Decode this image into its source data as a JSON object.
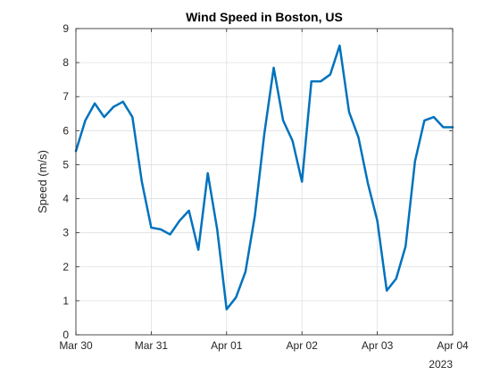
{
  "chart_data": {
    "type": "line",
    "title": "Wind Speed in Boston, US",
    "xlabel": "",
    "ylabel": "Speed (m/s)",
    "x_tick_labels": [
      "Mar 30",
      "Mar 31",
      "Apr 01",
      "Apr 02",
      "Apr 03",
      "Apr 04"
    ],
    "x_secondary_label": "2023",
    "y_ticks": [
      0,
      1,
      2,
      3,
      4,
      5,
      6,
      7,
      8,
      9
    ],
    "ylim": [
      0,
      9
    ],
    "xlim_days": [
      0,
      5
    ],
    "grid": true,
    "series": [
      {
        "color": "#0072BD",
        "x_days": [
          0.0,
          0.125,
          0.25,
          0.375,
          0.5,
          0.625,
          0.75,
          0.875,
          1.0,
          1.125,
          1.25,
          1.375,
          1.5,
          1.625,
          1.75,
          1.875,
          2.0,
          2.125,
          2.25,
          2.375,
          2.5,
          2.625,
          2.75,
          2.875,
          3.0,
          3.125,
          3.25,
          3.375,
          3.5,
          3.625,
          3.75,
          3.875,
          4.0,
          4.125,
          4.25,
          4.375,
          4.5,
          4.625,
          4.75,
          4.875,
          5.0
        ],
        "values": [
          5.4,
          6.3,
          6.8,
          6.4,
          6.7,
          6.85,
          6.4,
          4.5,
          3.15,
          3.1,
          2.95,
          3.35,
          3.65,
          2.5,
          4.75,
          3.1,
          0.75,
          1.1,
          1.85,
          3.5,
          5.9,
          7.85,
          6.3,
          5.7,
          4.5,
          7.45,
          7.45,
          7.65,
          8.5,
          6.55,
          5.8,
          4.45,
          3.35,
          1.3,
          1.65,
          2.6,
          5.1,
          6.3,
          6.4,
          6.1,
          6.1
        ]
      }
    ]
  }
}
